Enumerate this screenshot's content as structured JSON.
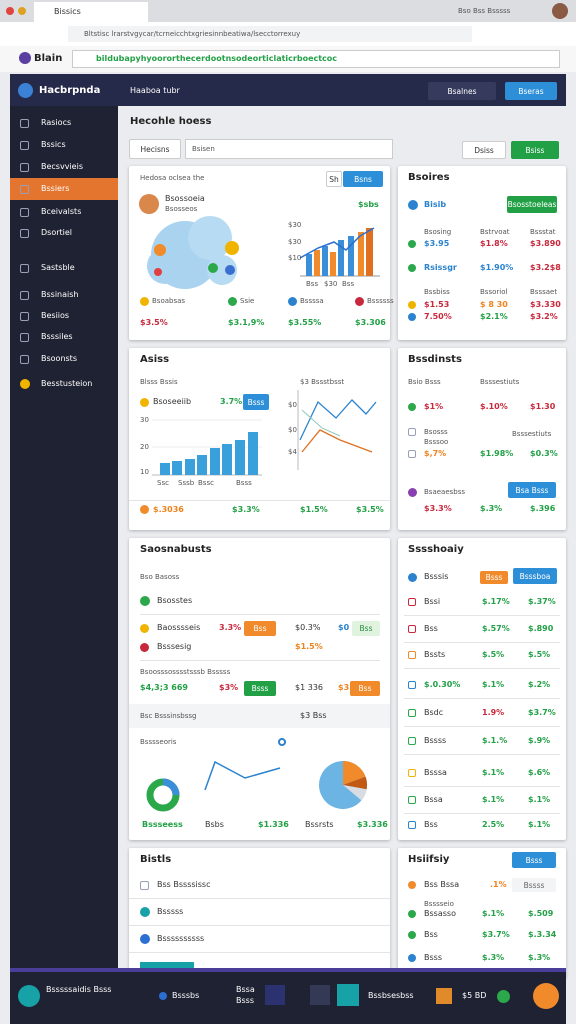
{
  "browser": {
    "tab_title": "Bissics",
    "address": "Bltstisc lrarstvgycar/tcrneicchtxgriesinnbeatiwa/lsecctorrexuy",
    "profile": "Bso Bss Bsssss"
  },
  "app_bar": {
    "logo": "Blain",
    "url": "bildubapyhyoororthecerdootnsodeorticlaticrboectcoc"
  },
  "sidebar": {
    "brand": "Hacbrpnda",
    "items": [
      "Rasiocs",
      "Bssics",
      "Becsvvieis",
      "Bssiers",
      "Bceivalsts",
      "Dsortiel",
      "Sastsble",
      "Bssinaish",
      "Besiios",
      "Bsssiles",
      "Bsoonsts",
      "Besstusteion"
    ]
  },
  "header": {
    "title": "Haaboa tubr",
    "menu": "Bsalnes",
    "action": "Bseras"
  },
  "toolbar": {
    "heading": "Hecohle hoess",
    "filter": "Hecisns",
    "search": "Bsisen",
    "secondary": "Dsiss",
    "primary": "Bsiss"
  },
  "overview": {
    "title": "Hedosa oclsea the",
    "toggle": [
      "Sh",
      "Bsns"
    ],
    "name": "Bsossoeia",
    "role": "Bsosseos",
    "amount": "$sbs",
    "axis": [
      "$30",
      "$30",
      "$10"
    ],
    "axis_x": [
      "Bss",
      "$30",
      "Bss"
    ],
    "stats": [
      {
        "label": "Bsoabsas",
        "value": "$3.5%"
      },
      {
        "label": "Ssie",
        "value": "$3.1,9%"
      },
      {
        "label": "Bssssa",
        "value": "$3.55%"
      },
      {
        "label": "Bssssss",
        "value": "$3.306"
      }
    ]
  },
  "balances": {
    "title": "Bsoires",
    "account": "Bisib",
    "button": "Bsosstoeleas",
    "captions": [
      [
        "Bsosing",
        "Bstrvoat",
        "Bssstat"
      ],
      [
        "Bssbiss",
        "Bssoriol",
        "Bsssaet"
      ]
    ],
    "rows": [
      [
        "$3.95",
        "$1.8%",
        "$3.890"
      ],
      [
        "Rsissgr",
        "$1.90%",
        "$3.2$8"
      ],
      [
        "$1.53",
        "$ 8 30",
        "$3.330"
      ],
      [
        "7.50%",
        "$2.1%",
        "$3.2%"
      ]
    ]
  },
  "activity": {
    "title": "Asiss",
    "legend": "Blsss Bssis",
    "series": "Bsoseeiib",
    "change": "3.7%",
    "button": "Bsss",
    "axis": [
      "30",
      "20",
      "10"
    ],
    "categories": [
      "Ssc",
      "Sssb",
      "Bssc",
      "Bsss"
    ],
    "line_legend": "$3 Bssstbsst",
    "line_axis": [
      "$0",
      "$0",
      "$4"
    ],
    "totals": [
      "$.3036",
      "$3.3%",
      "$1.5%",
      "$3.5%"
    ]
  },
  "conditions": {
    "title": "Bssdinsts",
    "columns": [
      "Bsio Bsss",
      "Bsssestiuts"
    ],
    "row1": [
      "$1%",
      "$.10%",
      "$1.30"
    ],
    "group": [
      "Bsosss",
      "Bsssoo"
    ],
    "group_caption": "Bsssestiuts",
    "row2": [
      "$,7%",
      "$1.98%",
      "$0.3%"
    ],
    "note": "Bsaeaesbss",
    "button": "Bsa Bsss",
    "row3": [
      "$3.3%",
      "$.3%",
      "$.396"
    ]
  },
  "summary": {
    "title": "Saosnabusts",
    "subtitle": "Bso Basoss",
    "item1": "Bsosstes",
    "item2": {
      "label": "Baosssseis",
      "value": "3.3%",
      "button": "Bss",
      "amount": "$0.3%",
      "count": "$0",
      "tag": "Bss"
    },
    "item3": {
      "label": "Bsssesig",
      "value": "$1.5%"
    },
    "group": "Bsoosssosssstsssb Bsssss",
    "item4": {
      "label": "$4,3;3 669",
      "value": "$3%",
      "button": "Bsss",
      "amount": "$1 336",
      "count": "$3",
      "tag": "Bss"
    },
    "select_label": "Bsc Bsssinsbssg",
    "select": "$3 Bss",
    "donut_label": "Bsssseoris",
    "footer": [
      "Bssseess",
      "Bsbs",
      "$1.336",
      "Bssrsts",
      "$3.336"
    ]
  },
  "monthly": {
    "title": "Sssshoaiy",
    "top": {
      "label": "Bsssis",
      "tag": "Bsss",
      "button": "Bsssboa"
    },
    "rows": [
      {
        "label": "Bssi",
        "values": [
          "$.17%",
          "$.37%"
        ]
      },
      {
        "label": "Bss",
        "values": [
          "$.57%",
          "$.890"
        ]
      },
      {
        "label": "Bssts",
        "values": [
          "$.5%",
          "$.5%"
        ]
      },
      {
        "label": "$.0.30%",
        "values": [
          "$.1%",
          "$.2%"
        ]
      },
      {
        "label": "Bsdc",
        "values": [
          "1.9%",
          "$3.7%"
        ]
      },
      {
        "label": "Bssss",
        "values": [
          "$.1.%",
          "$.9%"
        ]
      },
      {
        "label": "Bsssa",
        "values": [
          "$.1%",
          "$.6%"
        ]
      },
      {
        "label": "Bssa",
        "values": [
          "$.1%",
          "$.1%"
        ]
      },
      {
        "label": "Bss",
        "values": [
          "2.5%",
          "$.1%"
        ]
      }
    ]
  },
  "lists": {
    "title": "Bistls",
    "rows": [
      "Bss Bssssissc",
      "Bsssss",
      "Bssssssssss"
    ]
  },
  "history": {
    "title": "Hsiifsiy",
    "button": "Bsss",
    "filter_label": "Bss Bssa",
    "filter_value": ".1%",
    "input": "Bssss",
    "row_caption": "Bsssseio",
    "rows": [
      {
        "label": "Bssasso",
        "values": [
          "$.1%",
          "$.509"
        ]
      },
      {
        "label": "Bss",
        "values": [
          "$3.7%",
          "$.3.34"
        ]
      },
      {
        "label": "Bsss",
        "values": [
          "$.3%",
          "$.3%"
        ]
      }
    ]
  },
  "footer": {
    "title": "Bsssssaidis Bsss",
    "items": [
      "Bsssbs",
      "Bssa",
      "Bsss",
      "Bssbsesbss",
      "$5 BD"
    ]
  }
}
